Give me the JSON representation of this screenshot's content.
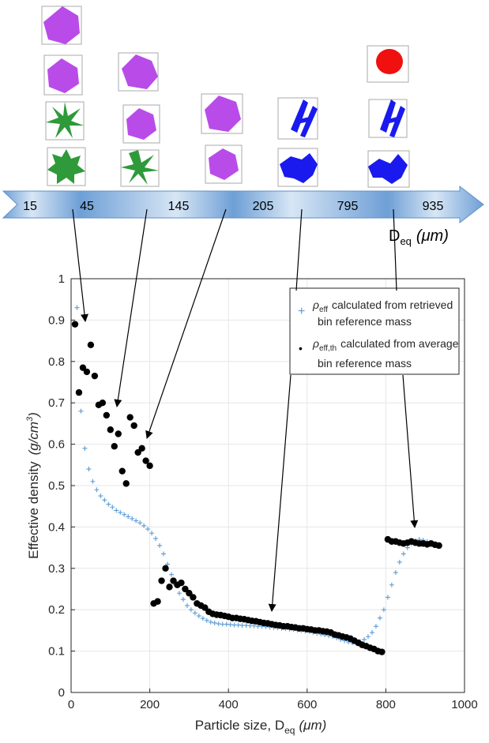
{
  "figure": {
    "arrow_labels": [
      "15",
      "45",
      "145",
      "205",
      "795",
      "935"
    ],
    "arrow_unit_main": "D",
    "arrow_unit_sub": "eq",
    "arrow_unit_tail": "(μm)"
  },
  "colors": {
    "arrow_fill": "#7fa8d8",
    "arrow_light": "#d7e6f5",
    "plus_series": "#5b9bd5",
    "dot_series": "#000000",
    "hexagon": "#b94ce8",
    "star": "#2e9a3a",
    "column": "#1a1aee",
    "sphere": "#f01010"
  },
  "particle_icons": [
    {
      "name": "hexagon",
      "color_key": "hexagon"
    },
    {
      "name": "star",
      "color_key": "star"
    },
    {
      "name": "column",
      "color_key": "column"
    },
    {
      "name": "sphere",
      "color_key": "sphere"
    }
  ],
  "chart_data": {
    "type": "scatter",
    "xlabel": "Particle size, D",
    "xlabel_sub": "eq",
    "xlabel_unit": "(μm)",
    "ylabel": "Effective density",
    "ylabel_unit": "(g/cm",
    "ylabel_unit_sup": "3",
    "ylabel_unit_close": ")",
    "xlim": [
      0,
      1000
    ],
    "ylim": [
      0,
      1
    ],
    "xticks": [
      "0",
      "200",
      "400",
      "600",
      "800",
      "1000"
    ],
    "yticks": [
      "0",
      "0.1",
      "0.2",
      "0.3",
      "0.4",
      "0.5",
      "0.6",
      "0.7",
      "0.8",
      "0.9",
      "1"
    ],
    "grid": true,
    "legend_position": "top-right",
    "legend": [
      {
        "symbol": "+",
        "rho_sub": "eff",
        "text_line1": "calculated from retrieved",
        "text_line2": "bin reference mass"
      },
      {
        "symbol": "•",
        "rho_sub": "eff,th",
        "text_line1": "calculated from average",
        "text_line2": "bin reference mass"
      }
    ],
    "series": [
      {
        "marker": "plus",
        "x": [
          15,
          25,
          35,
          45,
          55,
          65,
          75,
          85,
          95,
          105,
          115,
          125,
          135,
          145,
          155,
          165,
          175,
          185,
          195,
          205,
          215,
          225,
          235,
          245,
          255,
          265,
          275,
          285,
          295,
          305,
          315,
          325,
          335,
          345,
          355,
          365,
          375,
          385,
          395,
          405,
          415,
          425,
          435,
          445,
          455,
          465,
          475,
          485,
          495,
          505,
          515,
          525,
          535,
          545,
          555,
          565,
          575,
          585,
          595,
          605,
          615,
          625,
          635,
          645,
          655,
          665,
          675,
          685,
          695,
          705,
          715,
          725,
          735,
          745,
          755,
          765,
          775,
          785,
          795,
          805,
          815,
          825,
          835,
          845,
          855,
          865,
          875,
          885,
          895,
          905
        ],
        "y": [
          0.93,
          0.68,
          0.59,
          0.54,
          0.51,
          0.49,
          0.475,
          0.465,
          0.455,
          0.448,
          0.44,
          0.435,
          0.43,
          0.425,
          0.42,
          0.415,
          0.41,
          0.403,
          0.395,
          0.385,
          0.372,
          0.355,
          0.335,
          0.31,
          0.285,
          0.26,
          0.24,
          0.225,
          0.21,
          0.2,
          0.192,
          0.185,
          0.179,
          0.174,
          0.17,
          0.168,
          0.166,
          0.165,
          0.165,
          0.164,
          0.163,
          0.163,
          0.162,
          0.162,
          0.161,
          0.161,
          0.16,
          0.16,
          0.159,
          0.158,
          0.157,
          0.156,
          0.155,
          0.154,
          0.153,
          0.152,
          0.151,
          0.15,
          0.148,
          0.147,
          0.145,
          0.143,
          0.141,
          0.139,
          0.137,
          0.135,
          0.132,
          0.128,
          0.125,
          0.122,
          0.12,
          0.12,
          0.123,
          0.128,
          0.135,
          0.145,
          0.16,
          0.18,
          0.2,
          0.23,
          0.26,
          0.29,
          0.315,
          0.335,
          0.35,
          0.36,
          0.367,
          0.37,
          0.368,
          0.365
        ]
      },
      {
        "marker": "dot",
        "x": [
          10,
          20,
          30,
          40,
          50,
          60,
          70,
          80,
          90,
          100,
          110,
          120,
          130,
          140,
          150,
          160,
          170,
          180,
          190,
          200,
          210,
          220,
          230,
          240,
          250,
          260,
          270,
          280,
          290,
          300,
          310,
          320,
          330,
          340,
          350,
          360,
          370,
          380,
          390,
          400,
          410,
          420,
          430,
          440,
          450,
          460,
          470,
          480,
          490,
          500,
          510,
          520,
          530,
          540,
          550,
          560,
          570,
          580,
          590,
          600,
          610,
          620,
          630,
          640,
          650,
          660,
          670,
          680,
          690,
          700,
          710,
          720,
          730,
          740,
          750,
          760,
          770,
          780,
          790,
          805,
          815,
          825,
          835,
          845,
          855,
          865,
          875,
          885,
          895,
          905,
          915,
          925,
          935
        ],
        "y": [
          0.89,
          0.725,
          0.785,
          0.775,
          0.84,
          0.765,
          0.695,
          0.7,
          0.67,
          0.635,
          0.595,
          0.625,
          0.535,
          0.505,
          0.665,
          0.645,
          0.58,
          0.59,
          0.56,
          0.548,
          0.215,
          0.22,
          0.27,
          0.3,
          0.255,
          0.27,
          0.26,
          0.265,
          0.25,
          0.24,
          0.23,
          0.215,
          0.21,
          0.205,
          0.195,
          0.19,
          0.188,
          0.187,
          0.185,
          0.183,
          0.18,
          0.18,
          0.178,
          0.177,
          0.175,
          0.173,
          0.172,
          0.17,
          0.168,
          0.167,
          0.165,
          0.163,
          0.162,
          0.16,
          0.16,
          0.158,
          0.157,
          0.155,
          0.155,
          0.153,
          0.152,
          0.15,
          0.15,
          0.148,
          0.147,
          0.145,
          0.14,
          0.138,
          0.135,
          0.133,
          0.13,
          0.125,
          0.12,
          0.115,
          0.112,
          0.108,
          0.105,
          0.1,
          0.098,
          0.37,
          0.365,
          0.365,
          0.362,
          0.36,
          0.362,
          0.365,
          0.362,
          0.36,
          0.36,
          0.358,
          0.36,
          0.357,
          0.355
        ]
      }
    ]
  }
}
